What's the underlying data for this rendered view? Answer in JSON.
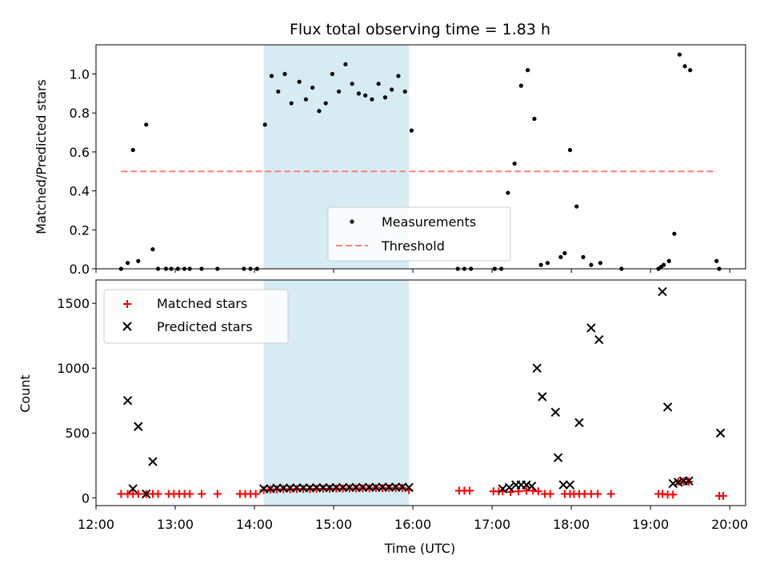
{
  "chart_data": [
    {
      "type": "scatter",
      "title": "Flux total observing time = 1.83 h",
      "ylabel": "Matched/Predicted stars",
      "xlim": [
        "12:00",
        "20:12"
      ],
      "ylim": [
        0,
        1.15
      ],
      "yticks": [
        0.0,
        0.2,
        0.4,
        0.6,
        0.8,
        1.0
      ],
      "ytick_labels": [
        "0.0",
        "0.2",
        "0.4",
        "0.6",
        "0.8",
        "1.0"
      ],
      "shaded_interval": [
        "14:07",
        "15:57"
      ],
      "shaded_color": "#add8e6",
      "legend_position": "lower center",
      "series": [
        {
          "name": "Measurements",
          "kind": "scatter",
          "color": "#000000",
          "points": [
            [
              "12:19",
              0.0
            ],
            [
              "12:24",
              0.03
            ],
            [
              "12:28",
              0.61
            ],
            [
              "12:32",
              0.04
            ],
            [
              "12:38",
              0.74
            ],
            [
              "12:43",
              0.1
            ],
            [
              "12:47",
              0.0
            ],
            [
              "12:53",
              0.0
            ],
            [
              "12:57",
              0.0
            ],
            [
              "13:02",
              0.0
            ],
            [
              "13:07",
              0.0
            ],
            [
              "13:11",
              0.0
            ],
            [
              "13:20",
              0.0
            ],
            [
              "13:32",
              0.0
            ],
            [
              "13:52",
              0.0
            ],
            [
              "13:57",
              0.0
            ],
            [
              "14:02",
              0.0
            ],
            [
              "14:08",
              0.74
            ],
            [
              "14:13",
              0.99
            ],
            [
              "14:18",
              0.91
            ],
            [
              "14:23",
              1.0
            ],
            [
              "14:28",
              0.85
            ],
            [
              "14:34",
              0.96
            ],
            [
              "14:39",
              0.87
            ],
            [
              "14:44",
              0.93
            ],
            [
              "14:49",
              0.81
            ],
            [
              "14:54",
              0.85
            ],
            [
              "14:59",
              1.0
            ],
            [
              "15:04",
              0.91
            ],
            [
              "15:09",
              1.05
            ],
            [
              "15:14",
              0.95
            ],
            [
              "15:19",
              0.9
            ],
            [
              "15:24",
              0.89
            ],
            [
              "15:29",
              0.87
            ],
            [
              "15:34",
              0.95
            ],
            [
              "15:39",
              0.88
            ],
            [
              "15:44",
              0.92
            ],
            [
              "15:49",
              0.99
            ],
            [
              "15:54",
              0.91
            ],
            [
              "15:59",
              0.71
            ],
            [
              "16:34",
              0.0
            ],
            [
              "16:39",
              0.0
            ],
            [
              "16:44",
              0.0
            ],
            [
              "17:02",
              0.0
            ],
            [
              "17:07",
              0.0
            ],
            [
              "17:12",
              0.39
            ],
            [
              "17:17",
              0.54
            ],
            [
              "17:22",
              0.94
            ],
            [
              "17:27",
              1.02
            ],
            [
              "17:32",
              0.77
            ],
            [
              "17:37",
              0.02
            ],
            [
              "17:42",
              0.03
            ],
            [
              "17:52",
              0.06
            ],
            [
              "17:55",
              0.08
            ],
            [
              "17:59",
              0.61
            ],
            [
              "18:04",
              0.32
            ],
            [
              "18:09",
              0.06
            ],
            [
              "18:15",
              0.02
            ],
            [
              "18:22",
              0.03
            ],
            [
              "18:38",
              0.0
            ],
            [
              "19:06",
              0.0
            ],
            [
              "19:08",
              0.01
            ],
            [
              "19:10",
              0.02
            ],
            [
              "19:14",
              0.04
            ],
            [
              "19:18",
              0.18
            ],
            [
              "19:22",
              1.1
            ],
            [
              "19:26",
              1.04
            ],
            [
              "19:30",
              1.02
            ],
            [
              "19:50",
              0.04
            ],
            [
              "19:52",
              0.0
            ]
          ]
        },
        {
          "name": "Threshold",
          "kind": "line",
          "style": "dashed",
          "color": "#ff7f7f",
          "points": [
            [
              "12:19",
              0.5
            ],
            [
              "19:50",
              0.5
            ]
          ]
        }
      ]
    },
    {
      "type": "scatter",
      "xlabel": "Time (UTC)",
      "ylabel": "Count",
      "xlim": [
        "12:00",
        "20:12"
      ],
      "ylim": [
        -60,
        1680
      ],
      "yticks": [
        0,
        500,
        1000,
        1500
      ],
      "ytick_labels": [
        "0",
        "500",
        "1000",
        "1500"
      ],
      "xticks": [
        "12:00",
        "13:00",
        "14:00",
        "15:00",
        "16:00",
        "17:00",
        "18:00",
        "19:00",
        "20:00"
      ],
      "xtick_labels": [
        "12:00",
        "13:00",
        "14:00",
        "15:00",
        "16:00",
        "17:00",
        "18:00",
        "19:00",
        "20:00"
      ],
      "shaded_interval": [
        "14:07",
        "15:57"
      ],
      "shaded_color": "#add8e6",
      "legend_position": "upper left",
      "series": [
        {
          "name": "Matched stars",
          "marker": "plus",
          "color": "#ff0000",
          "points": [
            [
              "12:19",
              30
            ],
            [
              "12:24",
              30
            ],
            [
              "12:28",
              30
            ],
            [
              "12:32",
              30
            ],
            [
              "12:38",
              30
            ],
            [
              "12:43",
              30
            ],
            [
              "12:47",
              30
            ],
            [
              "12:55",
              30
            ],
            [
              "12:59",
              30
            ],
            [
              "13:03",
              30
            ],
            [
              "13:07",
              30
            ],
            [
              "13:11",
              30
            ],
            [
              "13:20",
              30
            ],
            [
              "13:32",
              30
            ],
            [
              "13:49",
              30
            ],
            [
              "13:53",
              30
            ],
            [
              "13:57",
              30
            ],
            [
              "14:01",
              30
            ],
            [
              "14:07",
              60
            ],
            [
              "14:12",
              65
            ],
            [
              "14:17",
              65
            ],
            [
              "14:22",
              67
            ],
            [
              "14:27",
              67
            ],
            [
              "14:32",
              68
            ],
            [
              "14:37",
              68
            ],
            [
              "14:42",
              68
            ],
            [
              "14:47",
              70
            ],
            [
              "14:52",
              70
            ],
            [
              "14:57",
              70
            ],
            [
              "15:02",
              72
            ],
            [
              "15:07",
              72
            ],
            [
              "15:12",
              73
            ],
            [
              "15:17",
              73
            ],
            [
              "15:22",
              74
            ],
            [
              "15:27",
              74
            ],
            [
              "15:32",
              75
            ],
            [
              "15:37",
              75
            ],
            [
              "15:42",
              75
            ],
            [
              "15:47",
              76
            ],
            [
              "15:52",
              76
            ],
            [
              "15:57",
              60
            ],
            [
              "16:35",
              55
            ],
            [
              "16:39",
              55
            ],
            [
              "16:43",
              55
            ],
            [
              "17:01",
              50
            ],
            [
              "17:05",
              50
            ],
            [
              "17:08",
              50
            ],
            [
              "17:14",
              45
            ],
            [
              "17:20",
              50
            ],
            [
              "17:26",
              55
            ],
            [
              "17:31",
              55
            ],
            [
              "17:35",
              50
            ],
            [
              "17:40",
              30
            ],
            [
              "17:44",
              30
            ],
            [
              "17:55",
              30
            ],
            [
              "17:59",
              30
            ],
            [
              "18:02",
              30
            ],
            [
              "18:06",
              30
            ],
            [
              "18:10",
              30
            ],
            [
              "18:15",
              30
            ],
            [
              "18:20",
              30
            ],
            [
              "18:30",
              30
            ],
            [
              "19:06",
              30
            ],
            [
              "19:09",
              30
            ],
            [
              "19:13",
              25
            ],
            [
              "19:17",
              25
            ],
            [
              "19:21",
              125
            ],
            [
              "19:25",
              125
            ],
            [
              "19:29",
              125
            ],
            [
              "19:52",
              15
            ],
            [
              "19:55",
              15
            ]
          ]
        },
        {
          "name": "Predicted stars",
          "marker": "x",
          "color": "#000000",
          "points": [
            [
              "12:24",
              750
            ],
            [
              "12:28",
              70
            ],
            [
              "12:32",
              550
            ],
            [
              "12:38",
              30
            ],
            [
              "12:43",
              280
            ],
            [
              "14:07",
              70
            ],
            [
              "14:12",
              70
            ],
            [
              "14:17",
              75
            ],
            [
              "14:22",
              75
            ],
            [
              "14:27",
              75
            ],
            [
              "14:32",
              77
            ],
            [
              "14:37",
              77
            ],
            [
              "14:42",
              77
            ],
            [
              "14:47",
              78
            ],
            [
              "14:52",
              78
            ],
            [
              "14:57",
              78
            ],
            [
              "15:02",
              79
            ],
            [
              "15:07",
              79
            ],
            [
              "15:12",
              80
            ],
            [
              "15:17",
              80
            ],
            [
              "15:22",
              80
            ],
            [
              "15:27",
              81
            ],
            [
              "15:32",
              81
            ],
            [
              "15:37",
              82
            ],
            [
              "15:42",
              82
            ],
            [
              "15:47",
              82
            ],
            [
              "15:52",
              83
            ],
            [
              "15:57",
              80
            ],
            [
              "17:08",
              70
            ],
            [
              "17:13",
              80
            ],
            [
              "17:18",
              100
            ],
            [
              "17:22",
              100
            ],
            [
              "17:26",
              100
            ],
            [
              "17:30",
              90
            ],
            [
              "17:34",
              1000
            ],
            [
              "17:38",
              780
            ],
            [
              "17:48",
              660
            ],
            [
              "17:50",
              310
            ],
            [
              "17:54",
              100
            ],
            [
              "17:59",
              100
            ],
            [
              "18:06",
              580
            ],
            [
              "18:15",
              1310
            ],
            [
              "18:21",
              1220
            ],
            [
              "19:09",
              1590
            ],
            [
              "19:13",
              700
            ],
            [
              "19:17",
              110
            ],
            [
              "19:21",
              120
            ],
            [
              "19:25",
              130
            ],
            [
              "19:29",
              130
            ],
            [
              "19:53",
              500
            ]
          ]
        }
      ]
    }
  ]
}
